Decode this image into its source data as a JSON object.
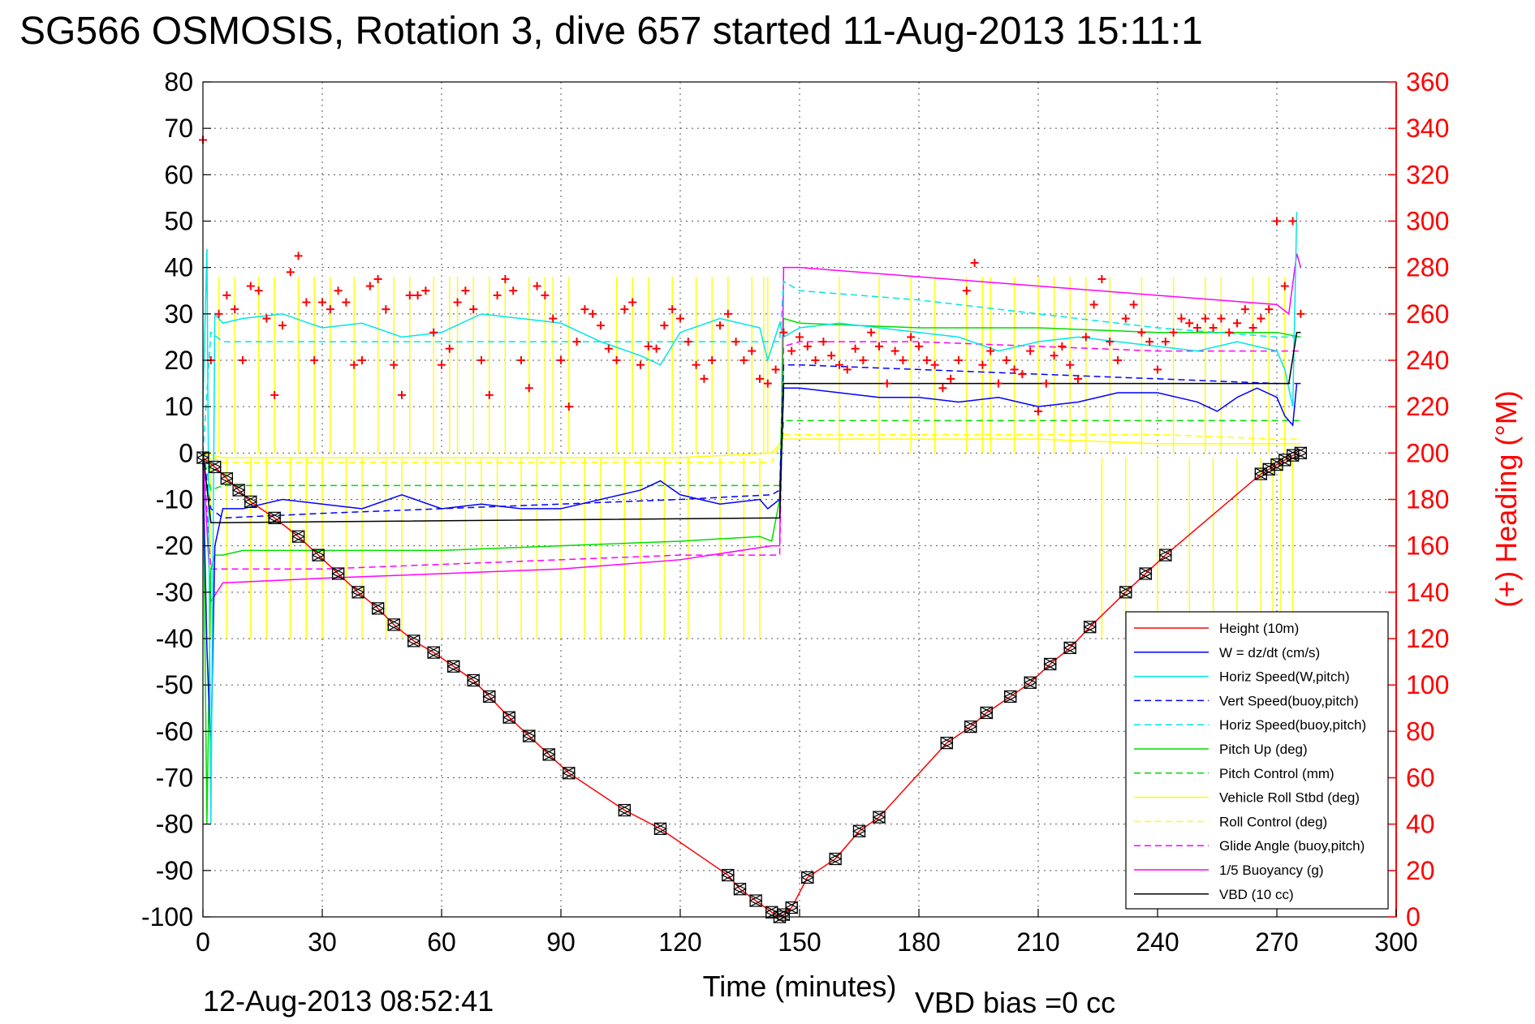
{
  "figure": {
    "title": "SG566 OSMOSIS, Rotation 3, dive 657 started 11-Aug-2013 15:11:1",
    "footer_left": "12-Aug-2013 08:52:41",
    "footer_right": "VBD bias =0 cc"
  },
  "chart_data": {
    "type": "line",
    "title": "SG566 OSMOSIS, Rotation 3, dive 657 started 11-Aug-2013 15:11:1",
    "xlabel": "Time (minutes)",
    "ylabel": "",
    "ylabel_right": "(+) Heading (°M)",
    "xlim": [
      0,
      300
    ],
    "ylim": [
      -100,
      80
    ],
    "ylim_right": [
      0,
      360
    ],
    "xticks": [
      0,
      30,
      60,
      90,
      120,
      150,
      180,
      210,
      240,
      270,
      300
    ],
    "yticks": [
      80,
      70,
      60,
      50,
      40,
      30,
      20,
      10,
      0,
      -10,
      -20,
      -30,
      -40,
      -50,
      -60,
      -70,
      -80,
      -90,
      -100
    ],
    "yticks_right": [
      360,
      340,
      320,
      300,
      280,
      260,
      240,
      220,
      200,
      180,
      160,
      140,
      120,
      100,
      80,
      60,
      40,
      20,
      0
    ],
    "grid": true,
    "legend_position": "bottom-right",
    "colors": {
      "height": "#ff0000",
      "w": "#0000ff",
      "horiz_w": "#00e6e6",
      "vert_buoy": "#0000ff",
      "horiz_buoy": "#00e6e6",
      "pitch": "#00dd00",
      "pitch_ctrl": "#00dd00",
      "roll": "#ffff00",
      "roll_ctrl": "#ffff00",
      "glide": "#ff00ff",
      "buoyancy": "#ff00ff",
      "vbd": "#000000",
      "heading": "#ff0000"
    },
    "series": [
      {
        "name": "Height (10m)",
        "style": "solid",
        "color": "#ff0000",
        "x": [
          0,
          3,
          6,
          9,
          12,
          18,
          24,
          29,
          34,
          39,
          44,
          48,
          53,
          58,
          63,
          68,
          72,
          77,
          82,
          87,
          92,
          106,
          115,
          132,
          135,
          139,
          143,
          145,
          146,
          148,
          152,
          159,
          165,
          170,
          187,
          193,
          197,
          203,
          208,
          213,
          218,
          223,
          232,
          237,
          242,
          266,
          268,
          270,
          272,
          274,
          276
        ],
        "y": [
          -1,
          -3,
          -5.5,
          -8,
          -10.5,
          -14,
          -18,
          -22,
          -26,
          -30,
          -33.5,
          -37,
          -40.5,
          -43,
          -46,
          -49,
          -52.5,
          -57,
          -61,
          -65,
          -69,
          -77,
          -81,
          -91,
          -94,
          -96.5,
          -99,
          -100,
          -99.5,
          -98,
          -91.5,
          -87.5,
          -81.5,
          -78.5,
          -62.5,
          -59,
          -56,
          -52.5,
          -49.5,
          -45.5,
          -42,
          -37.5,
          -30,
          -26,
          -22,
          -4.5,
          -3.5,
          -2.5,
          -1.5,
          -0.5,
          0
        ]
      },
      {
        "name": "W = dz/dt (cm/s)",
        "style": "solid",
        "color": "#0000ff",
        "x": [
          0,
          1,
          2,
          3,
          5,
          10,
          20,
          30,
          40,
          50,
          60,
          70,
          80,
          90,
          100,
          110,
          115,
          120,
          130,
          140,
          142,
          145,
          146,
          150,
          160,
          170,
          180,
          190,
          200,
          210,
          220,
          230,
          240,
          250,
          255,
          260,
          265,
          270,
          272,
          274,
          275
        ],
        "y": [
          -2,
          -42,
          -65,
          -20,
          -12,
          -12,
          -10,
          -11,
          -12,
          -9,
          -12,
          -11,
          -12,
          -12,
          -10,
          -8,
          -6,
          -9,
          -11,
          -10,
          -12,
          -10,
          14,
          14,
          13,
          12,
          12,
          11,
          12,
          10,
          11,
          13,
          13,
          11,
          9,
          12,
          14,
          12,
          8,
          6,
          15
        ]
      },
      {
        "name": "Horiz Speed(W,pitch)",
        "style": "solid",
        "color": "#00e6e6",
        "x": [
          0,
          1,
          2,
          3,
          5,
          10,
          20,
          30,
          40,
          50,
          60,
          70,
          80,
          90,
          100,
          110,
          115,
          120,
          130,
          140,
          142,
          145,
          146,
          150,
          160,
          170,
          180,
          190,
          200,
          210,
          220,
          230,
          240,
          250,
          255,
          260,
          265,
          270,
          272,
          274,
          275
        ],
        "y": [
          10,
          44,
          -80,
          30,
          28,
          29,
          30,
          27,
          28,
          25,
          26,
          30,
          29,
          28,
          24,
          21,
          19,
          26,
          29,
          27,
          20,
          28,
          25,
          27,
          28,
          27,
          26,
          25,
          22,
          24,
          25,
          24,
          23,
          22,
          23,
          24,
          23,
          22,
          18,
          10,
          52
        ]
      },
      {
        "name": "Vert Speed(buoy,pitch)",
        "style": "dashed",
        "color": "#0000ff",
        "x": [
          0,
          2,
          5,
          30,
          60,
          90,
          120,
          143,
          145,
          146,
          150,
          180,
          210,
          240,
          270,
          276
        ],
        "y": [
          0,
          -12,
          -14,
          -13,
          -12,
          -11,
          -10,
          -9,
          -8,
          19,
          19,
          18,
          17,
          16,
          15,
          15
        ]
      },
      {
        "name": "Horiz Speed(buoy,pitch)",
        "style": "dashed",
        "color": "#00e6e6",
        "x": [
          0,
          2,
          5,
          143,
          145,
          146,
          150,
          180,
          210,
          240,
          270,
          276
        ],
        "y": [
          0,
          26,
          24,
          24,
          24,
          37,
          35,
          33,
          30,
          27,
          25,
          25
        ]
      },
      {
        "name": "Pitch Up (deg)",
        "style": "solid",
        "color": "#00dd00",
        "x": [
          0,
          1,
          2,
          3,
          5,
          10,
          30,
          60,
          90,
          120,
          140,
          143,
          145,
          146,
          150,
          180,
          210,
          240,
          270,
          276
        ],
        "y": [
          0,
          -80,
          -25,
          -22,
          -22,
          -21,
          -21,
          -21,
          -20,
          -19,
          -18,
          -19,
          -10,
          29,
          28,
          27,
          27,
          26,
          26,
          25
        ]
      },
      {
        "name": "Pitch Control (mm)",
        "style": "dashed",
        "color": "#00dd00",
        "x": [
          0,
          2,
          5,
          143,
          145,
          146,
          150,
          180,
          210,
          240,
          270,
          276
        ],
        "y": [
          0,
          -8,
          -7,
          -7,
          -7,
          7,
          7,
          7,
          7,
          7,
          7,
          7
        ]
      },
      {
        "name": "Vehicle Roll Stbd (deg)",
        "style": "solid",
        "color": "#ffff00",
        "x": [
          0,
          5,
          30,
          60,
          90,
          120,
          143,
          146,
          150,
          180,
          210,
          240,
          270,
          276
        ],
        "y": [
          0,
          -1,
          -1,
          -1,
          -1,
          -1,
          0,
          3,
          3,
          3,
          3,
          2,
          2,
          2
        ]
      },
      {
        "name": "Roll Control (deg)",
        "style": "dashed",
        "color": "#ffff00",
        "x": [
          0,
          5,
          30,
          60,
          90,
          120,
          143,
          146,
          150,
          180,
          210,
          240,
          270,
          276
        ],
        "y": [
          0,
          -2,
          -2,
          -2,
          -2,
          -2,
          -2,
          4,
          4,
          4,
          4,
          4,
          3,
          3
        ]
      },
      {
        "name": "Glide Angle (buoy,pitch)",
        "style": "dashed",
        "color": "#ff00ff",
        "x": [
          0,
          2,
          5,
          30,
          60,
          90,
          120,
          143,
          145,
          146,
          150,
          180,
          210,
          240,
          270,
          276
        ],
        "y": [
          0,
          -25,
          -25,
          -25,
          -24,
          -23,
          -22,
          -22,
          -22,
          23,
          24,
          24,
          23,
          22,
          22,
          22
        ]
      },
      {
        "name": "1/5 Buoyancy (g)",
        "style": "solid",
        "color": "#ff00ff",
        "x": [
          0,
          2,
          5,
          30,
          60,
          90,
          120,
          143,
          145,
          146,
          150,
          180,
          210,
          240,
          270,
          273,
          275,
          276
        ],
        "y": [
          0,
          -32,
          -28,
          -27,
          -26,
          -25,
          -23,
          -20,
          -20,
          40,
          40,
          38,
          36,
          34,
          32,
          30,
          43,
          40
        ]
      },
      {
        "name": "VBD (10 cc)",
        "style": "solid",
        "color": "#000000",
        "x": [
          0,
          2,
          5,
          143,
          145,
          146,
          150,
          180,
          210,
          240,
          270,
          273,
          275,
          276
        ],
        "y": [
          0,
          -15,
          -15,
          -14,
          -14,
          15,
          15,
          15,
          15,
          15,
          15,
          15,
          26,
          26
        ]
      }
    ],
    "heading": {
      "name": "(+) Heading (°M)",
      "marker": "+",
      "color": "#ff0000",
      "x": [
        0,
        2,
        4,
        6,
        8,
        10,
        12,
        14,
        16,
        18,
        20,
        22,
        24,
        26,
        28,
        30,
        32,
        34,
        36,
        38,
        40,
        42,
        44,
        46,
        48,
        50,
        52,
        54,
        56,
        58,
        60,
        62,
        64,
        66,
        68,
        70,
        72,
        74,
        76,
        78,
        80,
        82,
        84,
        86,
        88,
        90,
        92,
        94,
        96,
        98,
        100,
        102,
        104,
        106,
        108,
        110,
        112,
        114,
        116,
        118,
        120,
        122,
        124,
        126,
        128,
        130,
        132,
        134,
        136,
        138,
        140,
        142,
        144,
        146,
        148,
        150,
        152,
        154,
        156,
        158,
        160,
        162,
        164,
        166,
        168,
        170,
        172,
        174,
        176,
        178,
        180,
        182,
        184,
        186,
        188,
        190,
        192,
        194,
        196,
        198,
        200,
        202,
        204,
        206,
        208,
        210,
        212,
        214,
        216,
        218,
        220,
        222,
        224,
        226,
        228,
        230,
        232,
        234,
        236,
        238,
        240,
        242,
        244,
        246,
        248,
        250,
        252,
        254,
        256,
        258,
        260,
        262,
        264,
        266,
        268,
        270,
        272,
        274,
        276
      ],
      "y": [
        335,
        240,
        260,
        268,
        262,
        240,
        272,
        270,
        258,
        225,
        255,
        278,
        285,
        265,
        240,
        265,
        262,
        270,
        265,
        238,
        240,
        272,
        275,
        262,
        238,
        225,
        268,
        268,
        270,
        252,
        238,
        245,
        265,
        270,
        262,
        240,
        225,
        268,
        275,
        270,
        240,
        228,
        272,
        268,
        258,
        240,
        220,
        248,
        262,
        260,
        255,
        245,
        240,
        262,
        265,
        238,
        246,
        245,
        255,
        262,
        258,
        248,
        238,
        232,
        240,
        255,
        260,
        248,
        240,
        244,
        232,
        230,
        236,
        252,
        244,
        250,
        246,
        240,
        248,
        242,
        238,
        236,
        245,
        240,
        252,
        246,
        230,
        244,
        240,
        250,
        246,
        240,
        238,
        228,
        232,
        240,
        270,
        282,
        238,
        244,
        230,
        240,
        236,
        234,
        244,
        218,
        230,
        242,
        246,
        238,
        232,
        250,
        264,
        275,
        248,
        240,
        258,
        264,
        252,
        248,
        236,
        248,
        252,
        258,
        256,
        254,
        258,
        254,
        258,
        252,
        256,
        262,
        254,
        258,
        262,
        300,
        272,
        300,
        260
      ]
    },
    "markers": {
      "name": "dive markers",
      "marker": "triangle-square",
      "color": "#000000"
    }
  }
}
